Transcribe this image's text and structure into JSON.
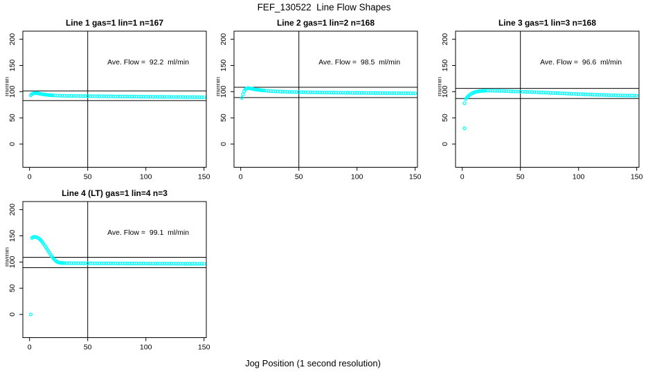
{
  "figure": {
    "title": "FEF_130522  Line Flow Shapes",
    "xlabel": "Jog Position (1 second resolution)",
    "background_color": "#ffffff",
    "axis_color": "#000000",
    "point_color": "#00ffff"
  },
  "chart_data": [
    {
      "type": "scatter",
      "title": "Line 1 gas=1 lin=1 n=167",
      "annotation": "Ave. Flow =  92.2  ml/min",
      "ave_flow_ml_min": 92.2,
      "n": 167,
      "ylabel": "ml/min",
      "xticks": [
        0,
        50,
        100,
        150
      ],
      "yticks": [
        0,
        50,
        100,
        150,
        200
      ],
      "vline_x": 50,
      "ref_lines": [
        101.4,
        83.0
      ],
      "points": [
        [
          1,
          93
        ],
        [
          2,
          95.5
        ],
        [
          3,
          96.5
        ],
        [
          4,
          97.2
        ],
        [
          5,
          97.5
        ],
        [
          6,
          97.3
        ],
        [
          7,
          96.9
        ],
        [
          8,
          96.4
        ],
        [
          9,
          95.9
        ],
        [
          10,
          95.5
        ],
        [
          11,
          95.1
        ],
        [
          12,
          94.8
        ],
        [
          13,
          94.5
        ],
        [
          14,
          94.2
        ],
        [
          15,
          93.9
        ],
        [
          16,
          93.7
        ],
        [
          17,
          93.5
        ],
        [
          18,
          93.3
        ],
        [
          19,
          93.1
        ],
        [
          20,
          92.9
        ],
        [
          22,
          92.7
        ],
        [
          24,
          92.5
        ],
        [
          26,
          92.3
        ],
        [
          28,
          92.2
        ],
        [
          30,
          92.1
        ],
        [
          32,
          92.0
        ],
        [
          34,
          91.9
        ],
        [
          36,
          91.9
        ],
        [
          38,
          91.8
        ],
        [
          40,
          91.8
        ],
        [
          42,
          91.7
        ],
        [
          44,
          91.7
        ],
        [
          46,
          91.6
        ],
        [
          48,
          91.6
        ],
        [
          50,
          91.5
        ],
        [
          52,
          91.5
        ],
        [
          54,
          91.4
        ],
        [
          56,
          91.4
        ],
        [
          58,
          91.3
        ],
        [
          60,
          91.3
        ],
        [
          62,
          91.2
        ],
        [
          64,
          91.2
        ],
        [
          66,
          91.1
        ],
        [
          68,
          91.1
        ],
        [
          70,
          91.0
        ],
        [
          72,
          91.0
        ],
        [
          74,
          90.9
        ],
        [
          76,
          90.9
        ],
        [
          78,
          90.8
        ],
        [
          80,
          90.8
        ],
        [
          82,
          90.7
        ],
        [
          84,
          90.7
        ],
        [
          86,
          90.7
        ],
        [
          88,
          90.6
        ],
        [
          90,
          90.6
        ],
        [
          92,
          90.5
        ],
        [
          94,
          90.5
        ],
        [
          96,
          90.4
        ],
        [
          98,
          90.4
        ],
        [
          100,
          90.4
        ],
        [
          102,
          90.3
        ],
        [
          104,
          90.3
        ],
        [
          106,
          90.2
        ],
        [
          108,
          90.2
        ],
        [
          110,
          90.2
        ],
        [
          112,
          90.1
        ],
        [
          114,
          90.1
        ],
        [
          116,
          90.0
        ],
        [
          118,
          90.0
        ],
        [
          120,
          90.0
        ],
        [
          122,
          89.9
        ],
        [
          124,
          89.9
        ],
        [
          126,
          89.8
        ],
        [
          128,
          89.8
        ],
        [
          130,
          89.8
        ],
        [
          132,
          89.7
        ],
        [
          134,
          89.7
        ],
        [
          136,
          89.6
        ],
        [
          138,
          89.6
        ],
        [
          140,
          89.6
        ],
        [
          142,
          89.5
        ],
        [
          144,
          89.5
        ],
        [
          146,
          89.4
        ],
        [
          148,
          89.4
        ],
        [
          150,
          89.4
        ]
      ]
    },
    {
      "type": "scatter",
      "title": "Line 2 gas=1 lin=2 n=168",
      "annotation": "Ave. Flow =  98.5  ml/min",
      "ave_flow_ml_min": 98.5,
      "n": 168,
      "ylabel": "ml/min",
      "xticks": [
        0,
        50,
        100,
        150
      ],
      "yticks": [
        0,
        50,
        100,
        150,
        200
      ],
      "vline_x": 50,
      "ref_lines": [
        108.4,
        88.7
      ],
      "points": [
        [
          1,
          88
        ],
        [
          2,
          95
        ],
        [
          3,
          101
        ],
        [
          4,
          104.5
        ],
        [
          5,
          106
        ],
        [
          6,
          106.8
        ],
        [
          7,
          106.6
        ],
        [
          8,
          106.2
        ],
        [
          9,
          105.8
        ],
        [
          10,
          105.4
        ],
        [
          11,
          105.0
        ],
        [
          12,
          104.6
        ],
        [
          13,
          104.2
        ],
        [
          14,
          103.8
        ],
        [
          15,
          103.5
        ],
        [
          16,
          103.2
        ],
        [
          17,
          102.9
        ],
        [
          18,
          102.6
        ],
        [
          19,
          102.4
        ],
        [
          20,
          102.2
        ],
        [
          22,
          101.8
        ],
        [
          24,
          101.4
        ],
        [
          26,
          101.1
        ],
        [
          28,
          100.8
        ],
        [
          30,
          100.6
        ],
        [
          32,
          100.4
        ],
        [
          34,
          100.2
        ],
        [
          36,
          100.0
        ],
        [
          38,
          99.8
        ],
        [
          40,
          99.7
        ],
        [
          42,
          99.5
        ],
        [
          44,
          99.4
        ],
        [
          46,
          99.3
        ],
        [
          48,
          99.2
        ],
        [
          50,
          99.1
        ],
        [
          52,
          99.0
        ],
        [
          54,
          98.9
        ],
        [
          56,
          98.8
        ],
        [
          58,
          98.8
        ],
        [
          60,
          98.7
        ],
        [
          62,
          98.6
        ],
        [
          64,
          98.6
        ],
        [
          66,
          98.5
        ],
        [
          68,
          98.5
        ],
        [
          70,
          98.4
        ],
        [
          72,
          98.4
        ],
        [
          74,
          98.3
        ],
        [
          76,
          98.3
        ],
        [
          78,
          98.2
        ],
        [
          80,
          98.2
        ],
        [
          82,
          98.1
        ],
        [
          84,
          98.1
        ],
        [
          86,
          98.0
        ],
        [
          88,
          98.0
        ],
        [
          90,
          97.9
        ],
        [
          92,
          97.9
        ],
        [
          94,
          97.8
        ],
        [
          96,
          97.8
        ],
        [
          98,
          97.7
        ],
        [
          100,
          97.7
        ],
        [
          102,
          97.7
        ],
        [
          104,
          97.6
        ],
        [
          106,
          97.6
        ],
        [
          108,
          97.5
        ],
        [
          110,
          97.5
        ],
        [
          112,
          97.5
        ],
        [
          114,
          97.4
        ],
        [
          116,
          97.4
        ],
        [
          118,
          97.3
        ],
        [
          120,
          97.3
        ],
        [
          122,
          97.3
        ],
        [
          124,
          97.2
        ],
        [
          126,
          97.2
        ],
        [
          128,
          97.1
        ],
        [
          130,
          97.1
        ],
        [
          132,
          97.1
        ],
        [
          134,
          97.0
        ],
        [
          136,
          97.0
        ],
        [
          138,
          97.0
        ],
        [
          140,
          96.9
        ],
        [
          142,
          96.9
        ],
        [
          144,
          96.9
        ],
        [
          146,
          96.8
        ],
        [
          148,
          96.8
        ],
        [
          150,
          96.8
        ]
      ]
    },
    {
      "type": "scatter",
      "title": "Line 3 gas=1 lin=3 n=168",
      "annotation": "Ave. Flow =  96.6  ml/min",
      "ave_flow_ml_min": 96.6,
      "n": 168,
      "ylabel": "ml/min",
      "xticks": [
        0,
        50,
        100,
        150
      ],
      "yticks": [
        0,
        50,
        100,
        150,
        200
      ],
      "vline_x": 50,
      "ref_lines": [
        106.3,
        86.9
      ],
      "points": [
        [
          2,
          30
        ],
        [
          2,
          78
        ],
        [
          3,
          86
        ],
        [
          4,
          88.5
        ],
        [
          5,
          91
        ],
        [
          6,
          93
        ],
        [
          7,
          94.8
        ],
        [
          8,
          96.2
        ],
        [
          9,
          97.4
        ],
        [
          10,
          98.4
        ],
        [
          11,
          99.2
        ],
        [
          12,
          99.8
        ],
        [
          13,
          100.3
        ],
        [
          14,
          100.7
        ],
        [
          15,
          101.0
        ],
        [
          16,
          101.3
        ],
        [
          17,
          101.5
        ],
        [
          18,
          101.6
        ],
        [
          19,
          101.7
        ],
        [
          20,
          101.8
        ],
        [
          22,
          101.9
        ],
        [
          24,
          101.9
        ],
        [
          26,
          101.8
        ],
        [
          28,
          101.7
        ],
        [
          30,
          101.6
        ],
        [
          32,
          101.5
        ],
        [
          34,
          101.4
        ],
        [
          36,
          101.2
        ],
        [
          38,
          101.1
        ],
        [
          40,
          100.9
        ],
        [
          42,
          100.8
        ],
        [
          44,
          100.6
        ],
        [
          46,
          100.4
        ],
        [
          48,
          100.3
        ],
        [
          50,
          100.1
        ],
        [
          52,
          99.9
        ],
        [
          54,
          99.8
        ],
        [
          56,
          99.6
        ],
        [
          58,
          99.4
        ],
        [
          60,
          99.2
        ],
        [
          62,
          99.0
        ],
        [
          64,
          98.9
        ],
        [
          66,
          98.7
        ],
        [
          68,
          98.5
        ],
        [
          70,
          98.3
        ],
        [
          72,
          98.1
        ],
        [
          74,
          97.9
        ],
        [
          76,
          97.7
        ],
        [
          78,
          97.5
        ],
        [
          80,
          97.4
        ],
        [
          82,
          97.2
        ],
        [
          84,
          97.0
        ],
        [
          86,
          96.8
        ],
        [
          88,
          96.6
        ],
        [
          90,
          96.4
        ],
        [
          92,
          96.2
        ],
        [
          94,
          96.0
        ],
        [
          96,
          95.8
        ],
        [
          98,
          95.6
        ],
        [
          100,
          95.5
        ],
        [
          102,
          95.3
        ],
        [
          104,
          95.1
        ],
        [
          106,
          94.9
        ],
        [
          108,
          94.7
        ],
        [
          110,
          94.6
        ],
        [
          112,
          94.4
        ],
        [
          114,
          94.2
        ],
        [
          116,
          94.1
        ],
        [
          118,
          93.9
        ],
        [
          120,
          93.8
        ],
        [
          122,
          93.6
        ],
        [
          124,
          93.5
        ],
        [
          126,
          93.3
        ],
        [
          128,
          93.2
        ],
        [
          130,
          93.1
        ],
        [
          132,
          93.0
        ],
        [
          134,
          92.9
        ],
        [
          136,
          92.8
        ],
        [
          138,
          92.7
        ],
        [
          140,
          92.6
        ],
        [
          142,
          92.5
        ],
        [
          144,
          92.5
        ],
        [
          146,
          92.4
        ],
        [
          148,
          92.4
        ],
        [
          150,
          92.3
        ]
      ]
    },
    {
      "type": "scatter",
      "title": "Line 4 (LT) gas=1 lin=4 n=3",
      "annotation": "Ave. Flow =  99.1  ml/min",
      "ave_flow_ml_min": 99.1,
      "n": 3,
      "ylabel": "ml/min",
      "xticks": [
        0,
        50,
        100,
        150
      ],
      "yticks": [
        0,
        50,
        100,
        150,
        200
      ],
      "vline_x": 50,
      "ref_lines": [
        109.0,
        89.2
      ],
      "points": [
        [
          1,
          0
        ],
        [
          2,
          146
        ],
        [
          3,
          147.5
        ],
        [
          4,
          148
        ],
        [
          5,
          148
        ],
        [
          6,
          147.3
        ],
        [
          7,
          146.2
        ],
        [
          8,
          144.8
        ],
        [
          9,
          143
        ],
        [
          10,
          140.8
        ],
        [
          11,
          138
        ],
        [
          12,
          135
        ],
        [
          13,
          131.8
        ],
        [
          14,
          128.4
        ],
        [
          15,
          125
        ],
        [
          16,
          121.5
        ],
        [
          17,
          118
        ],
        [
          18,
          114.5
        ],
        [
          19,
          111.2
        ],
        [
          20,
          108.2
        ],
        [
          21,
          105.5
        ],
        [
          22,
          103.2
        ],
        [
          23,
          101.4
        ],
        [
          24,
          100
        ],
        [
          25,
          99.2
        ],
        [
          26,
          98.7
        ],
        [
          27,
          98.4
        ],
        [
          28,
          98.2
        ],
        [
          29,
          98.1
        ],
        [
          30,
          98.0
        ],
        [
          32,
          97.9
        ],
        [
          34,
          97.9
        ],
        [
          36,
          97.8
        ],
        [
          38,
          97.8
        ],
        [
          40,
          97.8
        ],
        [
          42,
          97.7
        ],
        [
          44,
          97.7
        ],
        [
          46,
          97.7
        ],
        [
          48,
          97.6
        ],
        [
          50,
          97.6
        ],
        [
          52,
          97.6
        ],
        [
          54,
          97.6
        ],
        [
          56,
          97.5
        ],
        [
          58,
          97.5
        ],
        [
          60,
          97.5
        ],
        [
          62,
          97.5
        ],
        [
          64,
          97.4
        ],
        [
          66,
          97.4
        ],
        [
          68,
          97.4
        ],
        [
          70,
          97.4
        ],
        [
          72,
          97.4
        ],
        [
          74,
          97.3
        ],
        [
          76,
          97.3
        ],
        [
          78,
          97.3
        ],
        [
          80,
          97.3
        ],
        [
          82,
          97.3
        ],
        [
          84,
          97.2
        ],
        [
          86,
          97.2
        ],
        [
          88,
          97.2
        ],
        [
          90,
          97.2
        ],
        [
          92,
          97.2
        ],
        [
          94,
          97.1
        ],
        [
          96,
          97.1
        ],
        [
          98,
          97.1
        ],
        [
          100,
          97.1
        ],
        [
          102,
          97.1
        ],
        [
          104,
          97.0
        ],
        [
          106,
          97.0
        ],
        [
          108,
          97.0
        ],
        [
          110,
          97.0
        ],
        [
          112,
          97.0
        ],
        [
          114,
          96.9
        ],
        [
          116,
          96.9
        ],
        [
          118,
          96.9
        ],
        [
          120,
          96.9
        ],
        [
          122,
          96.9
        ],
        [
          124,
          96.8
        ],
        [
          126,
          96.8
        ],
        [
          128,
          96.8
        ],
        [
          130,
          96.8
        ],
        [
          132,
          96.8
        ],
        [
          134,
          96.7
        ],
        [
          136,
          96.7
        ],
        [
          138,
          96.7
        ],
        [
          140,
          96.7
        ],
        [
          142,
          96.7
        ],
        [
          144,
          96.6
        ],
        [
          146,
          96.6
        ],
        [
          148,
          96.6
        ],
        [
          150,
          96.6
        ]
      ]
    }
  ]
}
